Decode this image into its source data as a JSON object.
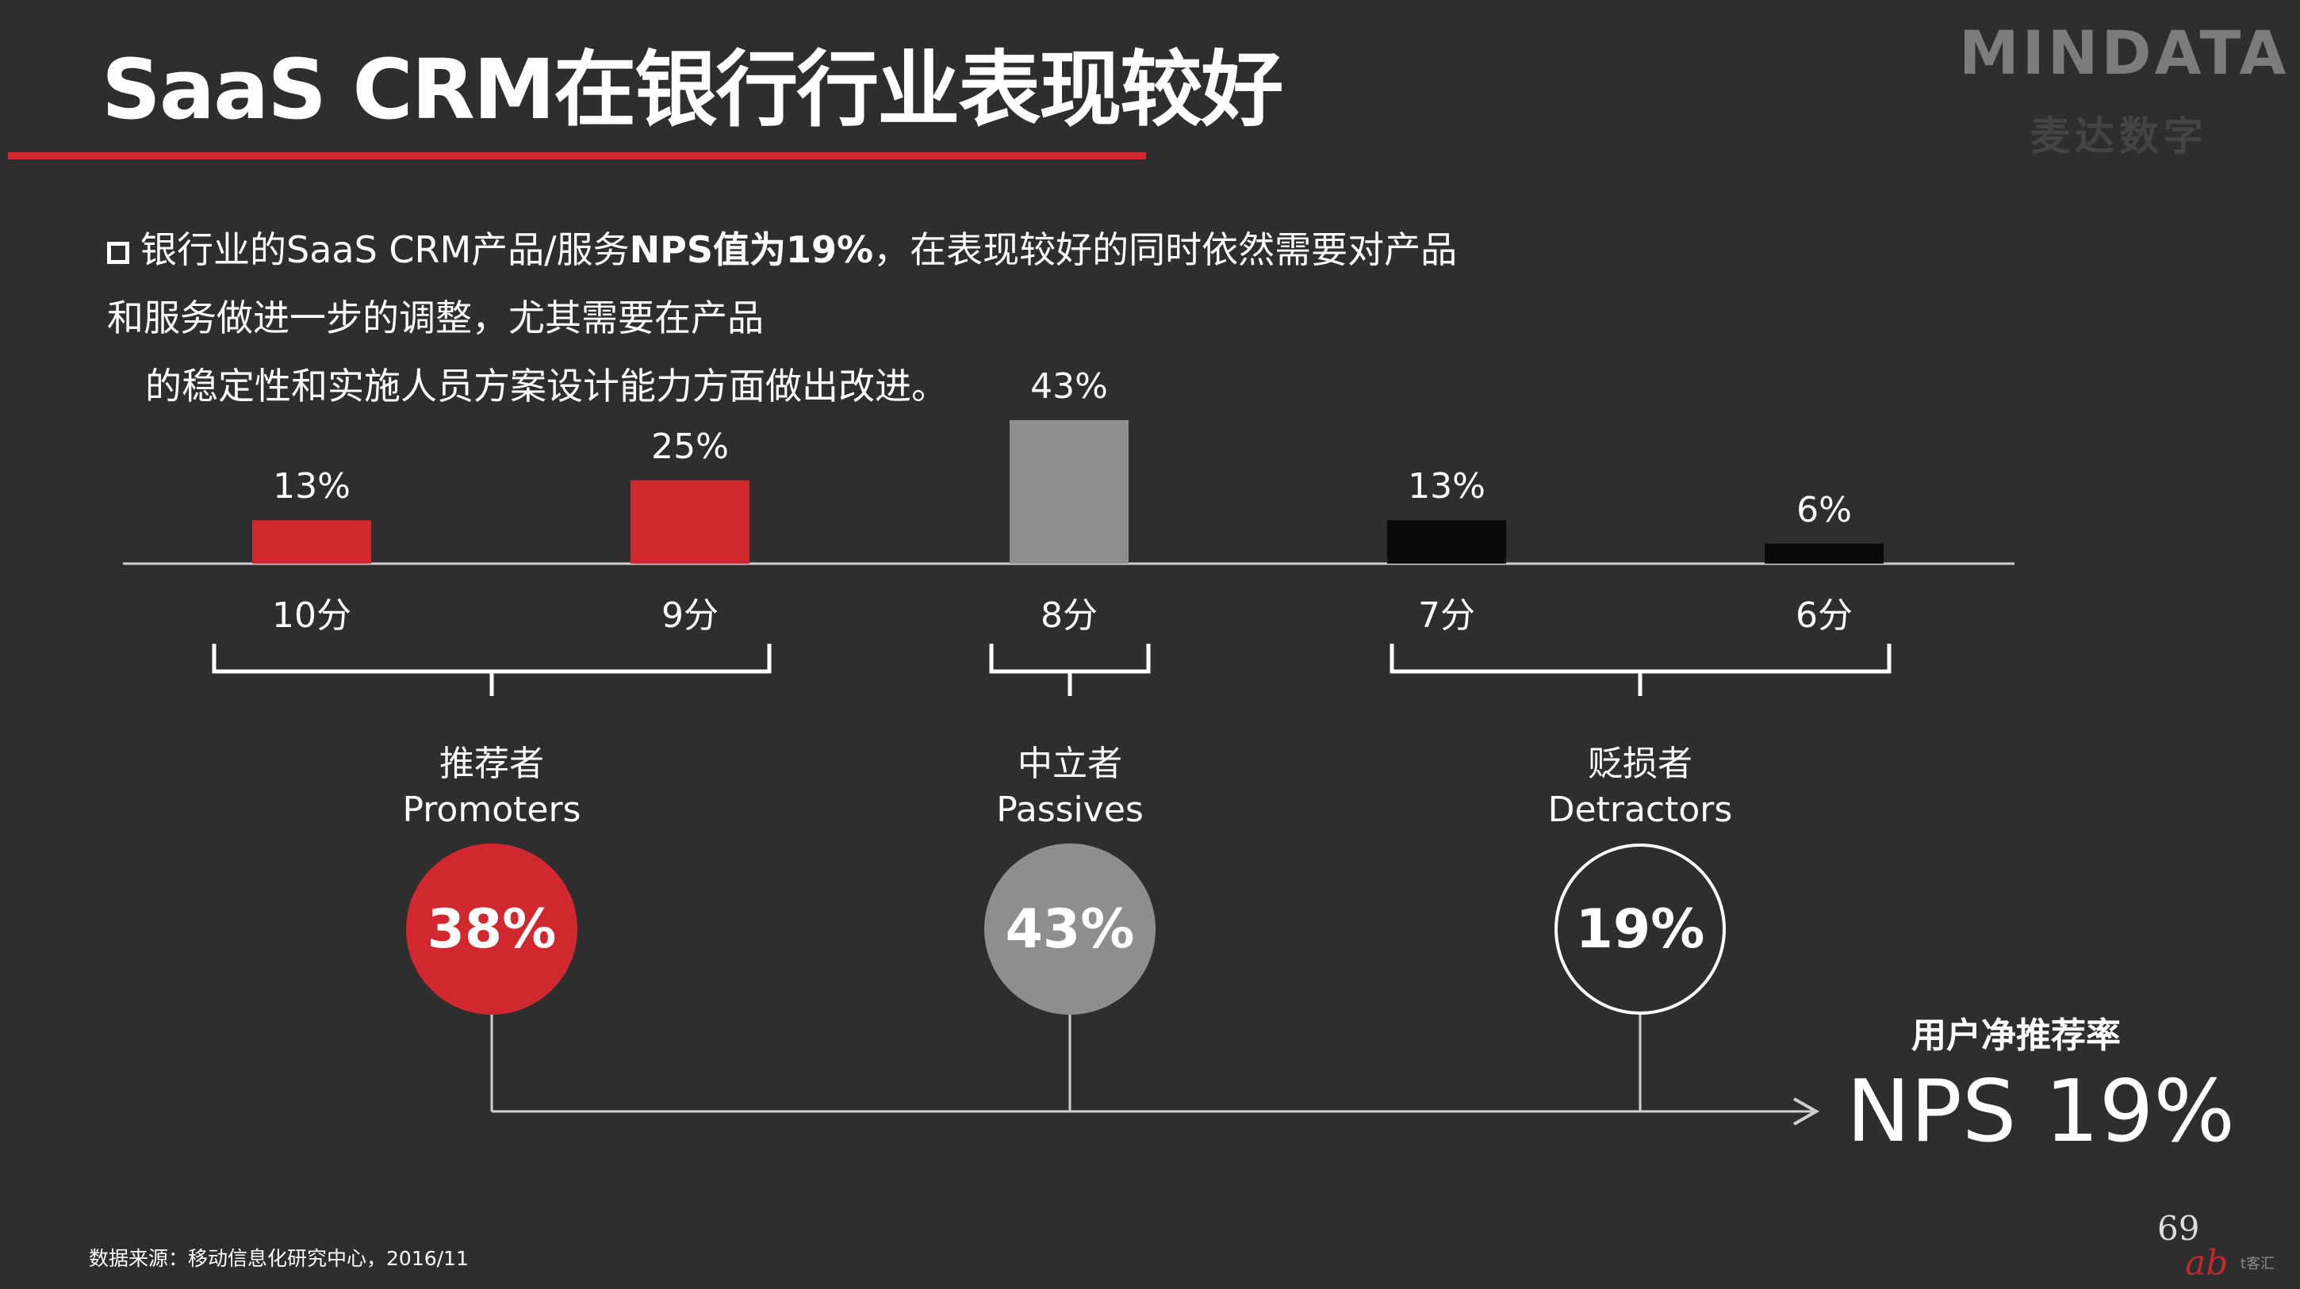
{
  "header": {
    "title": "SaaS CRM在银行行业表现较好",
    "logo": "MINDATA",
    "logo_sub": "麦达数字"
  },
  "summary": {
    "part1": "银行业的SaaS CRM产品/服务",
    "part2": "NPS值为19%",
    "part3": "，在表现较好的同时依然需要对产品和服务做进一步的调整，尤其需要在产品",
    "part4": "的稳定性和实施人员方案设计能力方面做出改进。"
  },
  "chart_data": {
    "type": "bar",
    "categories": [
      "10分",
      "9分",
      "8分",
      "7分",
      "6分"
    ],
    "values": [
      13,
      25,
      43,
      13,
      6
    ],
    "value_labels": [
      "13%",
      "25%",
      "43%",
      "13%",
      "6%"
    ],
    "colors": [
      "#d0282e",
      "#d0282e",
      "#8e8e8e",
      "#0a0a0a",
      "#0a0a0a"
    ],
    "groups": [
      {
        "label_cn": "推荐者",
        "label_en": "Promoters",
        "value": "38%",
        "style": "red"
      },
      {
        "label_cn": "中立者",
        "label_en": "Passives",
        "value": "43%",
        "style": "gray"
      },
      {
        "label_cn": "贬损者",
        "label_en": "Detractors",
        "value": "19%",
        "style": "outline"
      }
    ],
    "result": {
      "label": "用户净推荐率",
      "name": "NPS",
      "value": "19%"
    }
  },
  "footer": {
    "source": "数据来源：移动信息化研究中心，2016/11",
    "page": "69",
    "mark": "ab",
    "mark_text": "t客汇"
  },
  "colors": {
    "background": "#2e2e2e",
    "accent": "#d0282e",
    "neutral": "#8e8e8e"
  }
}
